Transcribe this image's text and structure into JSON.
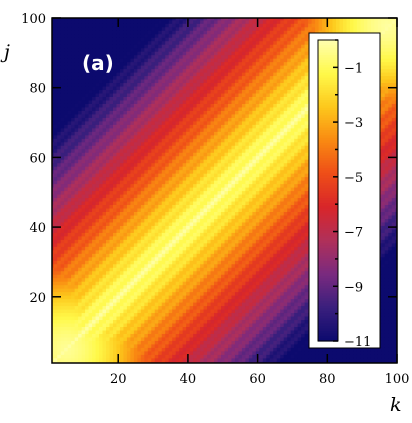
{
  "chart_data": {
    "type": "heatmap",
    "panel_label": "(a)",
    "xlabel": "k",
    "ylabel": "j",
    "xlim": [
      1,
      100
    ],
    "ylim": [
      1,
      100
    ],
    "x_ticks": [
      20,
      40,
      60,
      80,
      100
    ],
    "y_ticks": [
      20,
      40,
      60,
      80,
      100
    ],
    "colorbar": {
      "range": [
        -11,
        0
      ],
      "ticks": [
        -1,
        -3,
        -5,
        -7,
        -9,
        -11
      ],
      "tick_labels": [
        "−1",
        "−3",
        "−5",
        "−7",
        "−9",
        "−11"
      ],
      "colors": [
        "#0c0a6e",
        "#3a1f7d",
        "#7a2a7f",
        "#b0305a",
        "#d8262a",
        "#ee4d18",
        "#f98a12",
        "#fdc81c",
        "#fff94a",
        "#ffffb0"
      ]
    },
    "pattern": {
      "description_values": "log10 magnitude, maximal along diagonal j=k, decaying away from it",
      "diagonal_value": -0.5,
      "decay_per_index": 0.16,
      "ripple_period": 4.5,
      "ripple_amplitude": 0.35,
      "corner_peaks": [
        [
          5,
          5,
          -0.3
        ],
        [
          97,
          98,
          -0.2
        ]
      ]
    },
    "grid": false,
    "legend_position": "right-inside"
  }
}
